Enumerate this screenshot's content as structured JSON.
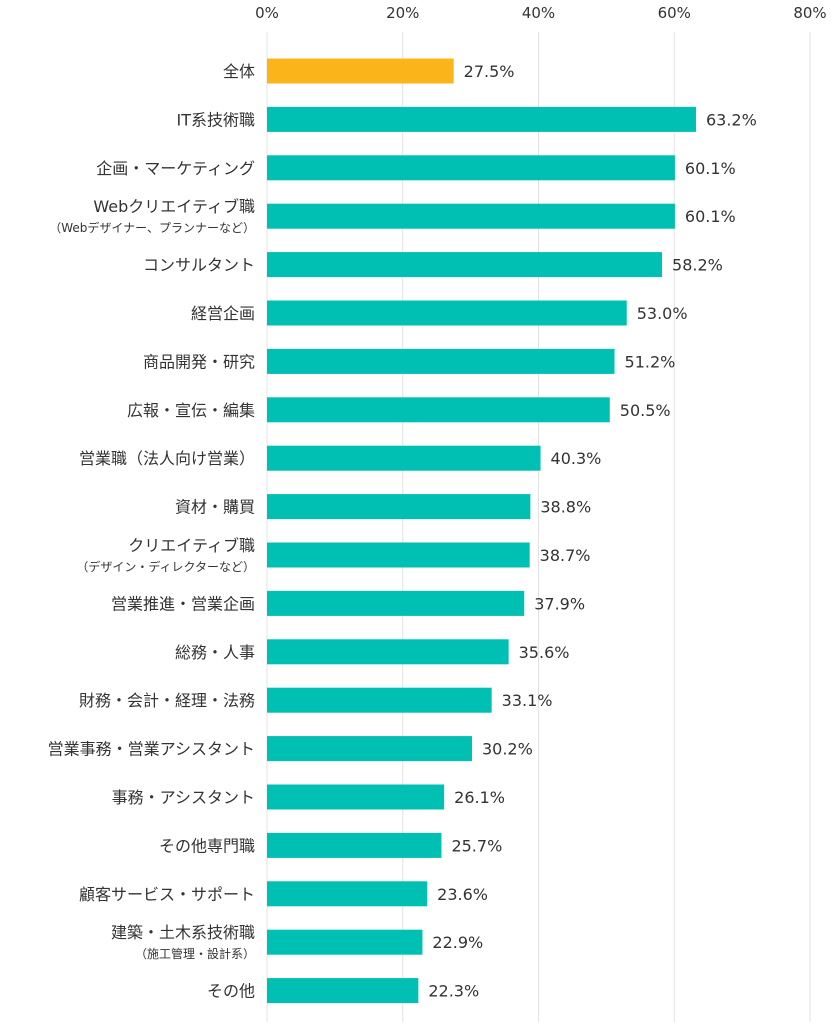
{
  "chart_data": {
    "type": "bar",
    "orientation": "horizontal",
    "xlim": [
      0,
      80
    ],
    "x_ticks": [
      "0%",
      "20%",
      "40%",
      "60%",
      "80%"
    ],
    "grid": true,
    "unit": "%",
    "colors": {
      "highlight": "#FBB41A",
      "default": "#00BFB3"
    },
    "categories": [
      {
        "label": "全体",
        "sub": "",
        "value": 27.5,
        "value_label": "27.5%",
        "highlight": true
      },
      {
        "label": "IT系技術職",
        "sub": "",
        "value": 63.2,
        "value_label": "63.2%"
      },
      {
        "label": "企画・マーケティング",
        "sub": "",
        "value": 60.1,
        "value_label": "60.1%"
      },
      {
        "label": "Webクリエイティブ職",
        "sub": "（Webデザイナー、プランナーなど）",
        "value": 60.1,
        "value_label": "60.1%"
      },
      {
        "label": "コンサルタント",
        "sub": "",
        "value": 58.2,
        "value_label": "58.2%"
      },
      {
        "label": "経営企画",
        "sub": "",
        "value": 53.0,
        "value_label": "53.0%"
      },
      {
        "label": "商品開発・研究",
        "sub": "",
        "value": 51.2,
        "value_label": "51.2%"
      },
      {
        "label": "広報・宣伝・編集",
        "sub": "",
        "value": 50.5,
        "value_label": "50.5%"
      },
      {
        "label": "営業職（法人向け営業）",
        "sub": "",
        "value": 40.3,
        "value_label": "40.3%"
      },
      {
        "label": "資材・購買",
        "sub": "",
        "value": 38.8,
        "value_label": "38.8%"
      },
      {
        "label": "クリエイティブ職",
        "sub": "（デザイン・ディレクターなど）",
        "value": 38.7,
        "value_label": "38.7%"
      },
      {
        "label": "営業推進・営業企画",
        "sub": "",
        "value": 37.9,
        "value_label": "37.9%"
      },
      {
        "label": "総務・人事",
        "sub": "",
        "value": 35.6,
        "value_label": "35.6%"
      },
      {
        "label": "財務・会計・経理・法務",
        "sub": "",
        "value": 33.1,
        "value_label": "33.1%"
      },
      {
        "label": "営業事務・営業アシスタント",
        "sub": "",
        "value": 30.2,
        "value_label": "30.2%"
      },
      {
        "label": "事務・アシスタント",
        "sub": "",
        "value": 26.1,
        "value_label": "26.1%"
      },
      {
        "label": "その他専門職",
        "sub": "",
        "value": 25.7,
        "value_label": "25.7%"
      },
      {
        "label": "顧客サービス・サポート",
        "sub": "",
        "value": 23.6,
        "value_label": "23.6%"
      },
      {
        "label": "建築・土木系技術職",
        "sub": "（施工管理・設計系）",
        "value": 22.9,
        "value_label": "22.9%"
      },
      {
        "label": "その他",
        "sub": "",
        "value": 22.3,
        "value_label": "22.3%"
      }
    ]
  }
}
